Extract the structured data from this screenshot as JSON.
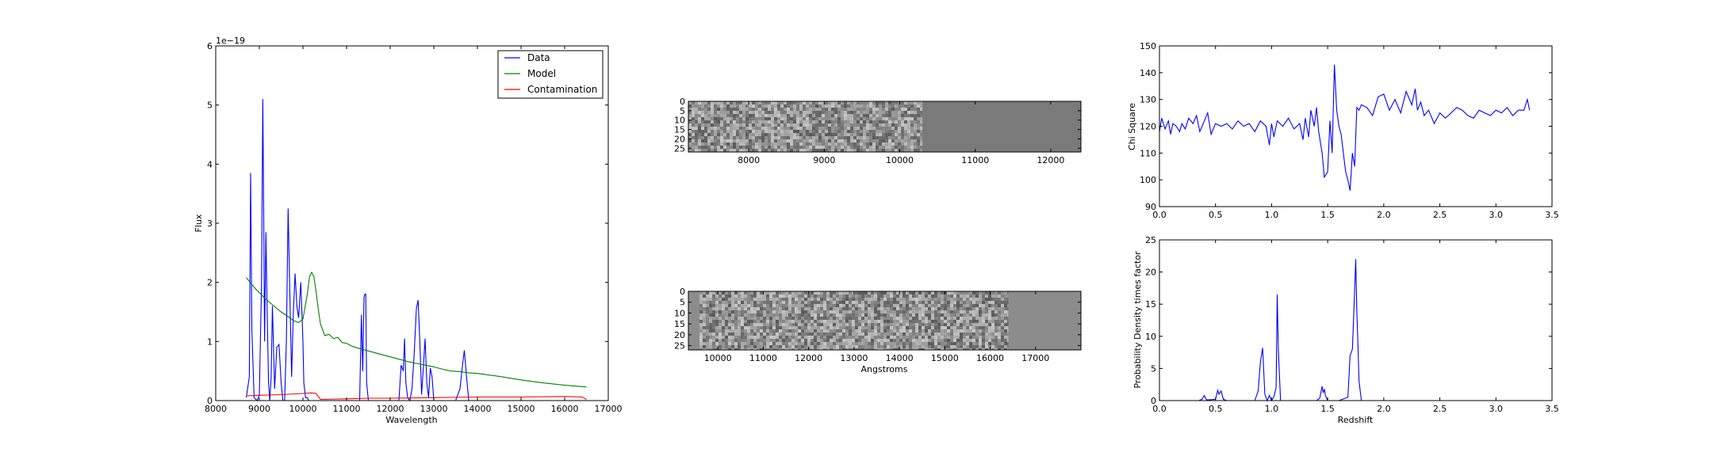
{
  "chart_data": [
    {
      "type": "line",
      "xlabel": "Wavelength",
      "ylabel": "Flux",
      "offset_label": "1e−19",
      "xlim": [
        8000,
        17000
      ],
      "ylim": [
        0,
        6
      ],
      "xticks": [
        8000,
        9000,
        10000,
        11000,
        12000,
        13000,
        14000,
        15000,
        16000,
        17000
      ],
      "yticks": [
        0,
        1,
        2,
        3,
        4,
        5,
        6
      ],
      "legend_position": "upper-right",
      "grid": false,
      "series": [
        {
          "name": "Data",
          "color": "#0000ff",
          "x": [
            8700,
            8770,
            8800,
            8830,
            8880,
            8950,
            9000,
            9050,
            9080,
            9100,
            9120,
            9150,
            9180,
            9210,
            9240,
            9270,
            9300,
            9350,
            9400,
            9450,
            9500,
            9540,
            9580,
            9620,
            9660,
            9700,
            9740,
            9780,
            9820,
            9860,
            9900,
            9950,
            10000,
            10020,
            10060,
            10100,
            10130,
            10160,
            10200,
            10260,
            10300,
            10500,
            11000,
            11300,
            11340,
            11370,
            11400,
            11420,
            11440,
            11460,
            11500,
            11550,
            11700,
            12000,
            12200,
            12250,
            12300,
            12330,
            12360,
            12400,
            12450,
            12500,
            12550,
            12600,
            12640,
            12680,
            12720,
            12760,
            12800,
            12840,
            12880,
            12920,
            12960,
            13000,
            13100,
            13500,
            13600,
            13650,
            13700,
            13750,
            13800,
            13900,
            14000,
            16500
          ],
          "y": [
            0.05,
            0.4,
            3.85,
            1.2,
            0.05,
            0.0,
            0.1,
            2.0,
            5.1,
            3.2,
            1.0,
            2.85,
            1.5,
            0.3,
            0.0,
            0.4,
            1.6,
            0.2,
            0.9,
            0.95,
            0.3,
            0.0,
            0.0,
            1.0,
            3.25,
            1.8,
            0.4,
            1.5,
            2.15,
            1.6,
            1.4,
            2.0,
            1.0,
            0.3,
            0.05,
            0.05,
            0.0,
            0.0,
            0.0,
            0.0,
            0.0,
            0.0,
            0.0,
            0.0,
            1.45,
            0.5,
            1.75,
            1.8,
            1.8,
            0.3,
            0.0,
            0.0,
            0.0,
            0.0,
            0.0,
            0.6,
            0.5,
            1.05,
            0.3,
            0.05,
            0.0,
            0.2,
            0.8,
            1.55,
            1.7,
            1.0,
            0.1,
            0.55,
            1.05,
            0.3,
            0.05,
            0.55,
            0.4,
            0.0,
            0.0,
            0.0,
            0.2,
            0.55,
            0.85,
            0.4,
            0.0,
            0.0,
            0.0,
            0.0
          ]
        },
        {
          "name": "Model",
          "color": "#008000",
          "x": [
            8700,
            8900,
            9100,
            9300,
            9500,
            9700,
            9800,
            9900,
            10000,
            10100,
            10150,
            10200,
            10250,
            10300,
            10350,
            10400,
            10450,
            10500,
            10600,
            10700,
            10800,
            10900,
            11000,
            11100,
            11200,
            11300,
            11400,
            11500,
            11600,
            11800,
            12000,
            12200,
            12400,
            12600,
            12800,
            13000,
            13200,
            13400,
            13600,
            13800,
            14000,
            14500,
            15000,
            15500,
            16000,
            16500
          ],
          "y": [
            2.08,
            1.9,
            1.75,
            1.62,
            1.5,
            1.4,
            1.35,
            1.32,
            1.38,
            1.8,
            2.1,
            2.17,
            2.1,
            1.85,
            1.55,
            1.3,
            1.2,
            1.1,
            1.12,
            1.05,
            1.07,
            0.98,
            0.97,
            0.93,
            0.9,
            0.88,
            0.86,
            0.84,
            0.82,
            0.78,
            0.74,
            0.7,
            0.66,
            0.63,
            0.6,
            0.57,
            0.53,
            0.5,
            0.49,
            0.47,
            0.46,
            0.41,
            0.35,
            0.3,
            0.26,
            0.23
          ]
        },
        {
          "name": "Contamination",
          "color": "#ff0000",
          "x": [
            8700,
            9000,
            9500,
            10000,
            10200,
            10300,
            10400,
            11000,
            11500,
            12000,
            13000,
            14000,
            15000,
            16000,
            16400,
            16500
          ],
          "y": [
            0.08,
            0.09,
            0.1,
            0.12,
            0.13,
            0.12,
            0.02,
            0.03,
            0.04,
            0.04,
            0.05,
            0.06,
            0.06,
            0.07,
            0.06,
            0.02
          ]
        }
      ]
    },
    {
      "type": "heatmap",
      "xlim": [
        7200,
        12400
      ],
      "data_end_x": 10300,
      "xticks": [
        8000,
        9000,
        10000,
        11000,
        12000
      ],
      "yticks": [
        0,
        5,
        10,
        15,
        20,
        25
      ],
      "ylim": [
        0,
        27
      ],
      "background_color": "#7a7a7a"
    },
    {
      "type": "heatmap",
      "xlabel": "Angstroms",
      "xlim": [
        9350,
        18000
      ],
      "data_end_x": 16400,
      "xticks": [
        10000,
        11000,
        12000,
        13000,
        14000,
        15000,
        16000,
        17000
      ],
      "yticks": [
        0,
        5,
        10,
        15,
        20,
        25
      ],
      "ylim": [
        0,
        27
      ],
      "background_color": "#8c8c8c"
    },
    {
      "type": "line",
      "ylabel": "Chi Square",
      "xlim": [
        0,
        3.5
      ],
      "ylim": [
        90,
        150
      ],
      "xticks": [
        "0.0",
        "0.5",
        "1.0",
        "1.5",
        "2.0",
        "2.5",
        "3.0",
        "3.5"
      ],
      "yticks": [
        90,
        100,
        110,
        120,
        130,
        140,
        150
      ],
      "series": [
        {
          "color": "#0000ff",
          "x": [
            0.0,
            0.02,
            0.05,
            0.08,
            0.1,
            0.12,
            0.15,
            0.18,
            0.2,
            0.23,
            0.26,
            0.3,
            0.33,
            0.36,
            0.4,
            0.43,
            0.46,
            0.5,
            0.55,
            0.6,
            0.65,
            0.7,
            0.75,
            0.8,
            0.85,
            0.9,
            0.95,
            0.98,
            1.0,
            1.02,
            1.05,
            1.1,
            1.15,
            1.2,
            1.25,
            1.28,
            1.3,
            1.33,
            1.35,
            1.38,
            1.4,
            1.42,
            1.45,
            1.47,
            1.5,
            1.52,
            1.54,
            1.56,
            1.58,
            1.6,
            1.62,
            1.64,
            1.66,
            1.68,
            1.7,
            1.72,
            1.74,
            1.76,
            1.78,
            1.8,
            1.85,
            1.9,
            1.95,
            2.0,
            2.05,
            2.1,
            2.15,
            2.2,
            2.25,
            2.28,
            2.3,
            2.33,
            2.36,
            2.4,
            2.45,
            2.5,
            2.55,
            2.6,
            2.65,
            2.7,
            2.75,
            2.8,
            2.85,
            2.9,
            2.95,
            3.0,
            3.05,
            3.1,
            3.15,
            3.2,
            3.25,
            3.28,
            3.3
          ],
          "y": [
            118,
            123,
            119,
            122,
            117,
            121,
            120,
            118,
            121,
            119,
            123,
            121,
            124,
            118,
            122,
            125,
            117,
            121,
            120,
            121,
            119,
            122,
            120,
            121,
            118,
            122,
            120,
            113,
            121,
            116,
            122,
            120,
            123,
            119,
            121,
            115,
            123,
            116,
            126,
            120,
            127,
            118,
            110,
            101,
            103,
            122,
            110,
            143,
            126,
            120,
            117,
            110,
            103,
            100,
            96,
            110,
            105,
            127,
            126,
            128,
            127,
            124,
            131,
            132,
            126,
            130,
            125,
            133,
            128,
            134,
            126,
            129,
            124,
            126,
            121,
            125,
            123,
            125,
            127,
            126,
            124,
            123,
            126,
            125,
            124,
            126,
            125,
            127,
            124,
            126,
            126,
            130,
            126
          ]
        }
      ]
    },
    {
      "type": "line",
      "ylabel": "Probability Density times factor",
      "xlabel": "Redshift",
      "xlim": [
        0,
        3.5
      ],
      "ylim": [
        0,
        25
      ],
      "xticks": [
        "0.0",
        "0.5",
        "1.0",
        "1.5",
        "2.0",
        "2.5",
        "3.0",
        "3.5"
      ],
      "yticks": [
        0,
        5,
        10,
        15,
        20,
        25
      ],
      "series": [
        {
          "color": "#0000ff",
          "x": [
            0.0,
            0.35,
            0.38,
            0.4,
            0.42,
            0.5,
            0.52,
            0.53,
            0.55,
            0.57,
            0.6,
            0.85,
            0.88,
            0.9,
            0.92,
            0.94,
            0.96,
            0.98,
            1.0,
            1.02,
            1.04,
            1.05,
            1.06,
            1.08,
            1.4,
            1.43,
            1.45,
            1.46,
            1.47,
            1.48,
            1.5,
            1.6,
            1.68,
            1.7,
            1.72,
            1.74,
            1.75,
            1.76,
            1.78,
            1.8,
            2.0,
            3.3
          ],
          "y": [
            0,
            0,
            0.2,
            0.8,
            0.1,
            0.2,
            1.6,
            1.0,
            1.5,
            0.2,
            0,
            0,
            1.5,
            6.0,
            8.2,
            1.0,
            0,
            0.8,
            0,
            0.6,
            2.0,
            16.5,
            8.0,
            0,
            0,
            0.4,
            2.2,
            1.2,
            1.8,
            0.8,
            0,
            0,
            0.5,
            7.0,
            8.0,
            17.0,
            22.0,
            14.0,
            3.0,
            0,
            0,
            0
          ]
        }
      ]
    }
  ]
}
